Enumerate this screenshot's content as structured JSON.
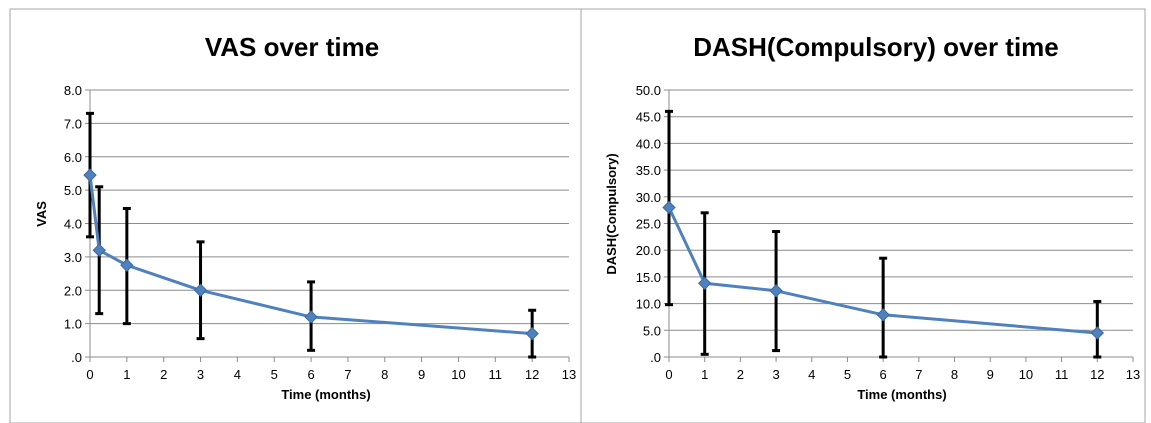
{
  "chart_data": [
    {
      "type": "line",
      "title": "VAS over time",
      "xlabel": "Time (months)",
      "ylabel": "VAS",
      "xlim": [
        0,
        13
      ],
      "ylim": [
        0,
        8
      ],
      "x_ticks": [
        "0",
        "1",
        "2",
        "3",
        "4",
        "5",
        "6",
        "7",
        "8",
        "9",
        "10",
        "11",
        "12",
        "13"
      ],
      "y_ticks": [
        ".0",
        "1.0",
        "2.0",
        "3.0",
        "4.0",
        "5.0",
        "6.0",
        "7.0",
        "8.0"
      ],
      "grid": "horizontal",
      "line_color": "#4f81bd",
      "series": [
        {
          "x": [
            0,
            0.25,
            1,
            3,
            6,
            12
          ],
          "y": [
            5.45,
            3.2,
            2.75,
            2.0,
            1.2,
            0.7
          ],
          "error_low": [
            3.6,
            1.3,
            1.0,
            0.55,
            0.2,
            0.0
          ],
          "error_high": [
            7.3,
            5.1,
            4.45,
            3.45,
            2.25,
            1.4
          ]
        }
      ]
    },
    {
      "type": "line",
      "title": "DASH(Compulsory) over time",
      "xlabel": "Time (months)",
      "ylabel": "DASH(Compulsory)",
      "xlim": [
        0,
        13
      ],
      "ylim": [
        0,
        50
      ],
      "x_ticks": [
        "0",
        "1",
        "2",
        "3",
        "4",
        "5",
        "6",
        "7",
        "8",
        "9",
        "10",
        "11",
        "12",
        "13"
      ],
      "y_ticks": [
        ".0",
        "5.0",
        "10.0",
        "15.0",
        "20.0",
        "25.0",
        "30.0",
        "35.0",
        "40.0",
        "45.0",
        "50.0"
      ],
      "grid": "horizontal",
      "line_color": "#4f81bd",
      "series": [
        {
          "x": [
            0,
            1,
            3,
            6,
            12
          ],
          "y": [
            28.0,
            13.8,
            12.4,
            7.9,
            4.5
          ],
          "error_low": [
            9.8,
            0.5,
            1.2,
            0.0,
            0.0
          ],
          "error_high": [
            46.0,
            27.0,
            23.5,
            18.5,
            10.4
          ]
        }
      ]
    }
  ]
}
